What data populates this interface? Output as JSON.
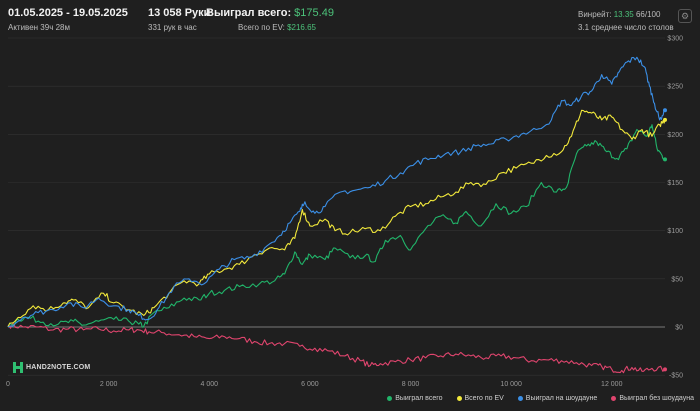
{
  "header": {
    "date_range": "01.05.2025 - 19.05.2025",
    "active_time": "Активен 39ч 28м",
    "hands": "13 058 Руки",
    "hands_per_hour": "331 рук в час",
    "won_total_label": "Выиграл всего:",
    "won_total_value": "$175.49",
    "ev_label": "Всего по EV:",
    "ev_value": "$216.65",
    "winrate_label": "Винрейт:",
    "winrate_value": "13.35",
    "winrate_suffix": "66/100",
    "avg_tables": "3.1 среднее число столов",
    "settings_icon": "gear-icon"
  },
  "logo": {
    "text": "HAND2NOTE.COM"
  },
  "colors": {
    "background": "#1f1f1f",
    "grid": "#333333",
    "zero_line": "#9a9a9a",
    "won_total": "#21b56a",
    "ev": "#f2e93b",
    "showdown": "#3b8fe6",
    "non_showdown": "#e0456e"
  },
  "chart_data": {
    "type": "line",
    "x_ticks": [
      0,
      2000,
      4000,
      6000,
      8000,
      10000,
      12000
    ],
    "x_tick_labels": [
      "0",
      "2 000",
      "4 000",
      "6 000",
      "8 000",
      "10 000",
      "12 000"
    ],
    "y_ticks": [
      -50,
      0,
      50,
      100,
      150,
      200,
      250,
      300
    ],
    "y_tick_labels": [
      "-$50",
      "$0",
      "$50",
      "$100",
      "$150",
      "$200",
      "$250",
      "$300"
    ],
    "xlim": [
      0,
      13058
    ],
    "ylim": [
      -55,
      300
    ],
    "legend_position": "bottom-right",
    "series": [
      {
        "name": "Выиграл всего",
        "color": "#21b56a",
        "x": [
          0,
          200,
          400,
          700,
          1000,
          1300,
          1500,
          1800,
          2100,
          2400,
          2600,
          2700,
          2900,
          3200,
          3500,
          3800,
          4000,
          4300,
          4600,
          5000,
          5300,
          5500,
          5700,
          5850,
          6000,
          6300,
          6500,
          6800,
          7100,
          7300,
          7500,
          7800,
          8000,
          8300,
          8600,
          8900,
          9100,
          9400,
          9700,
          10000,
          10300,
          10600,
          10900,
          11100,
          11300,
          11500,
          11700,
          11900,
          12100,
          12300,
          12500,
          12700,
          12800,
          12900,
          13000,
          13058
        ],
        "y": [
          0,
          8,
          10,
          5,
          3,
          6,
          2,
          6,
          8,
          6,
          3,
          1,
          15,
          20,
          30,
          28,
          35,
          38,
          42,
          45,
          48,
          55,
          78,
          65,
          75,
          70,
          82,
          72,
          74,
          68,
          90,
          95,
          80,
          102,
          115,
          108,
          120,
          105,
          128,
          118,
          125,
          150,
          140,
          145,
          180,
          188,
          192,
          182,
          175,
          185,
          205,
          198,
          210,
          185,
          178,
          174
        ]
      },
      {
        "name": "Всего по EV",
        "color": "#f2e93b",
        "x": [
          0,
          200,
          500,
          800,
          1100,
          1300,
          1600,
          1900,
          2100,
          2400,
          2700,
          2900,
          3200,
          3500,
          3800,
          4000,
          4300,
          4600,
          4900,
          5200,
          5500,
          5700,
          5850,
          6000,
          6300,
          6500,
          6800,
          7100,
          7400,
          7700,
          8000,
          8300,
          8600,
          8900,
          9200,
          9500,
          9800,
          10100,
          10400,
          10700,
          11000,
          11200,
          11400,
          11600,
          11800,
          12000,
          12200,
          12400,
          12600,
          12800,
          12950,
          13058
        ],
        "y": [
          0,
          10,
          22,
          18,
          25,
          28,
          20,
          35,
          25,
          18,
          12,
          20,
          35,
          48,
          45,
          55,
          60,
          65,
          75,
          82,
          80,
          92,
          122,
          105,
          112,
          100,
          98,
          102,
          100,
          115,
          125,
          128,
          135,
          140,
          150,
          148,
          160,
          165,
          170,
          178,
          182,
          198,
          225,
          222,
          215,
          218,
          205,
          195,
          205,
          198,
          210,
          215
        ]
      },
      {
        "name": "Выиграл на шоудауне",
        "color": "#3b8fe6",
        "x": [
          0,
          300,
          600,
          900,
          1200,
          1500,
          1800,
          2100,
          2400,
          2600,
          2800,
          3000,
          3300,
          3600,
          3900,
          4200,
          4500,
          4800,
          5100,
          5400,
          5600,
          5800,
          5900,
          6100,
          6300,
          6600,
          6900,
          7200,
          7500,
          7800,
          8100,
          8400,
          8700,
          9000,
          9300,
          9600,
          9900,
          10200,
          10500,
          10800,
          11000,
          11200,
          11400,
          11600,
          11800,
          12000,
          12150,
          12300,
          12500,
          12650,
          12750,
          12850,
          12950,
          13058
        ],
        "y": [
          0,
          10,
          15,
          18,
          25,
          20,
          30,
          22,
          18,
          12,
          8,
          20,
          42,
          50,
          45,
          60,
          70,
          72,
          82,
          95,
          108,
          120,
          130,
          118,
          125,
          140,
          142,
          145,
          152,
          160,
          170,
          175,
          180,
          182,
          188,
          190,
          195,
          200,
          205,
          215,
          235,
          230,
          240,
          245,
          262,
          252,
          265,
          275,
          280,
          270,
          250,
          232,
          215,
          225
        ]
      },
      {
        "name": "Выиграл без шоудауна",
        "color": "#e0456e",
        "x": [
          0,
          300,
          600,
          900,
          1200,
          1500,
          1800,
          2100,
          2400,
          2600,
          2800,
          3100,
          3400,
          3700,
          4000,
          4300,
          4600,
          4900,
          5200,
          5500,
          5800,
          6100,
          6400,
          6700,
          7000,
          7200,
          7400,
          7700,
          8000,
          8300,
          8600,
          8900,
          9200,
          9500,
          9800,
          10100,
          10400,
          10700,
          11000,
          11300,
          11600,
          11800,
          12000,
          12200,
          12400,
          12600,
          12800,
          13058
        ],
        "y": [
          2,
          0,
          0,
          -3,
          -2,
          -3,
          -2,
          -4,
          -3,
          -3,
          -5,
          -6,
          -8,
          -10,
          -12,
          -10,
          -12,
          -15,
          -17,
          -17,
          -20,
          -22,
          -25,
          -30,
          -35,
          -40,
          -38,
          -36,
          -34,
          -32,
          -30,
          -28,
          -30,
          -32,
          -30,
          -32,
          -35,
          -34,
          -35,
          -37,
          -40,
          -41,
          -44,
          -45,
          -42,
          -46,
          -43,
          -44
        ]
      }
    ]
  }
}
